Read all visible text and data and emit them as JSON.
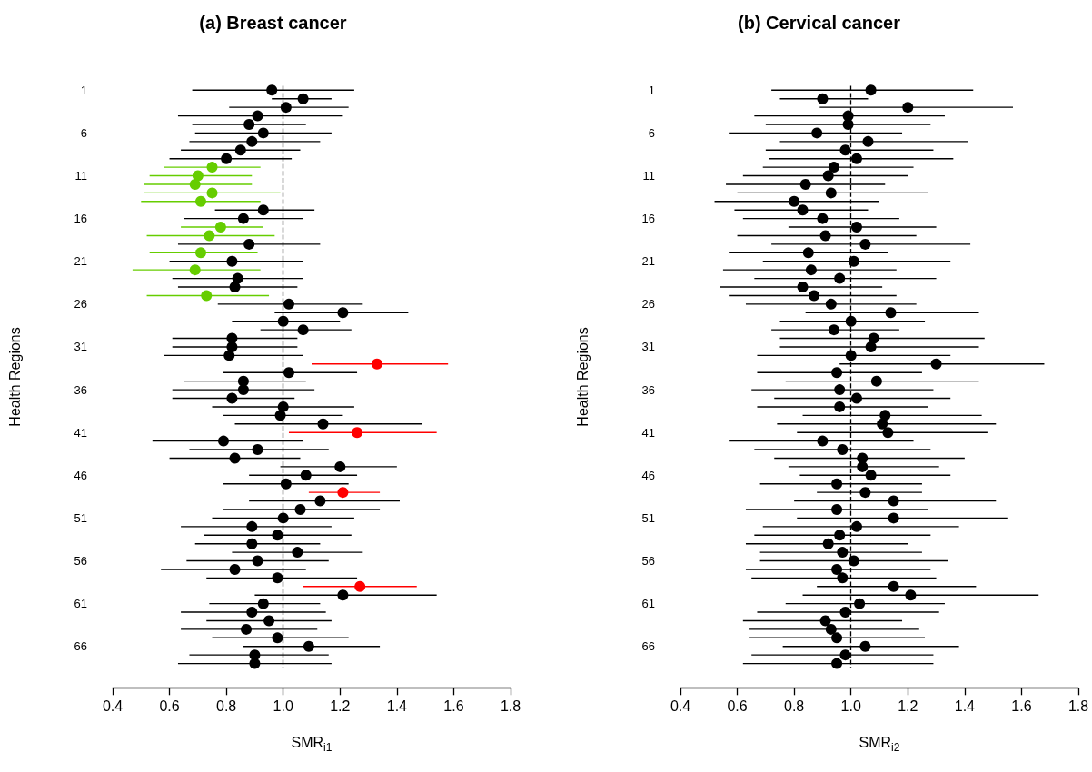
{
  "chart_data": [
    {
      "type": "scatter",
      "orientation": "horizontal",
      "title": "(a) Breast cancer",
      "xlabel": "SMR$_{i1}$",
      "ylabel": "Health Regions",
      "categories": [
        "1",
        null,
        null,
        null,
        null,
        "6",
        null,
        null,
        null,
        null,
        "11",
        null,
        null,
        null,
        null,
        "16",
        null,
        null,
        null,
        null,
        "21",
        null,
        null,
        null,
        null,
        "26",
        null,
        null,
        null,
        null,
        "31",
        null,
        null,
        null,
        null,
        "36",
        null,
        null,
        null,
        null,
        "41",
        null,
        null,
        null,
        null,
        "46",
        null,
        null,
        null,
        null,
        "51",
        null,
        null,
        null,
        null,
        "56",
        null,
        null,
        null,
        null,
        "61",
        null,
        null,
        null,
        null,
        "66",
        null,
        null
      ],
      "values": [
        0.96,
        1.07,
        1.01,
        0.91,
        0.88,
        0.93,
        0.89,
        0.85,
        0.8,
        0.75,
        0.7,
        0.69,
        0.75,
        0.71,
        0.93,
        0.86,
        0.78,
        0.74,
        0.88,
        0.71,
        0.82,
        0.69,
        0.84,
        0.83,
        0.73,
        1.02,
        1.21,
        1.0,
        1.07,
        0.82,
        0.82,
        0.81,
        1.33,
        1.02,
        0.86,
        0.86,
        0.82,
        1.0,
        0.99,
        1.14,
        1.26,
        0.79,
        0.91,
        0.83,
        1.2,
        1.08,
        1.01,
        1.21,
        1.13,
        1.06,
        1.0,
        0.89,
        0.98,
        0.89,
        1.05,
        0.91,
        0.83,
        0.98,
        1.27,
        1.21,
        0.93,
        0.89,
        0.95,
        0.87,
        0.98,
        1.09,
        0.9,
        0.9
      ],
      "errors": [
        [
          0.68,
          1.25
        ],
        [
          0.96,
          1.17
        ],
        [
          0.81,
          1.23
        ],
        [
          0.63,
          1.21
        ],
        [
          0.68,
          1.08
        ],
        [
          0.69,
          1.17
        ],
        [
          0.67,
          1.13
        ],
        [
          0.64,
          1.06
        ],
        [
          0.6,
          1.03
        ],
        [
          0.58,
          0.92
        ],
        [
          0.53,
          0.89
        ],
        [
          0.51,
          0.89
        ],
        [
          0.51,
          0.99
        ],
        [
          0.5,
          0.92
        ],
        [
          0.76,
          1.11
        ],
        [
          0.65,
          1.07
        ],
        [
          0.64,
          0.93
        ],
        [
          0.52,
          0.97
        ],
        [
          0.63,
          1.13
        ],
        [
          0.53,
          0.91
        ],
        [
          0.6,
          1.07
        ],
        [
          0.47,
          0.92
        ],
        [
          0.61,
          1.07
        ],
        [
          0.63,
          1.05
        ],
        [
          0.52,
          0.95
        ],
        [
          0.77,
          1.28
        ],
        [
          0.97,
          1.44
        ],
        [
          0.82,
          1.2
        ],
        [
          0.92,
          1.24
        ],
        [
          0.61,
          1.05
        ],
        [
          0.61,
          1.05
        ],
        [
          0.58,
          1.07
        ],
        [
          1.1,
          1.58
        ],
        [
          0.79,
          1.26
        ],
        [
          0.65,
          1.08
        ],
        [
          0.61,
          1.11
        ],
        [
          0.61,
          1.04
        ],
        [
          0.75,
          1.25
        ],
        [
          0.79,
          1.21
        ],
        [
          0.83,
          1.49
        ],
        [
          1.02,
          1.54
        ],
        [
          0.54,
          1.07
        ],
        [
          0.67,
          1.16
        ],
        [
          0.6,
          1.06
        ],
        [
          0.99,
          1.4
        ],
        [
          0.88,
          1.26
        ],
        [
          0.79,
          1.23
        ],
        [
          1.09,
          1.34
        ],
        [
          0.88,
          1.41
        ],
        [
          0.79,
          1.34
        ],
        [
          0.75,
          1.25
        ],
        [
          0.64,
          1.17
        ],
        [
          0.72,
          1.24
        ],
        [
          0.69,
          1.13
        ],
        [
          0.82,
          1.28
        ],
        [
          0.66,
          1.16
        ],
        [
          0.57,
          1.08
        ],
        [
          0.73,
          1.26
        ],
        [
          1.07,
          1.47
        ],
        [
          0.9,
          1.54
        ],
        [
          0.74,
          1.13
        ],
        [
          0.64,
          1.15
        ],
        [
          0.73,
          1.17
        ],
        [
          0.64,
          1.12
        ],
        [
          0.75,
          1.23
        ],
        [
          0.86,
          1.34
        ],
        [
          0.67,
          1.16
        ],
        [
          0.63,
          1.17
        ]
      ],
      "colors": [
        "#000000",
        "#000000",
        "#000000",
        "#000000",
        "#000000",
        "#000000",
        "#000000",
        "#000000",
        "#000000",
        "#66cd00",
        "#66cd00",
        "#66cd00",
        "#66cd00",
        "#66cd00",
        "#000000",
        "#000000",
        "#66cd00",
        "#66cd00",
        "#000000",
        "#66cd00",
        "#000000",
        "#66cd00",
        "#000000",
        "#000000",
        "#66cd00",
        "#000000",
        "#000000",
        "#000000",
        "#000000",
        "#000000",
        "#000000",
        "#000000",
        "#ff0000",
        "#000000",
        "#000000",
        "#000000",
        "#000000",
        "#000000",
        "#000000",
        "#000000",
        "#ff0000",
        "#000000",
        "#000000",
        "#000000",
        "#000000",
        "#000000",
        "#000000",
        "#ff0000",
        "#000000",
        "#000000",
        "#000000",
        "#000000",
        "#000000",
        "#000000",
        "#000000",
        "#000000",
        "#000000",
        "#000000",
        "#ff0000",
        "#000000",
        "#000000",
        "#000000",
        "#000000",
        "#000000",
        "#000000",
        "#000000",
        "#000000",
        "#000000"
      ],
      "xlim": [
        0.4,
        1.8
      ],
      "xticks": [
        0.4,
        0.6,
        0.8,
        {
          "value": 1,
          "label": "1.0"
        },
        1.2,
        1.4,
        1.6,
        1.8
      ],
      "ref_lines": [
        {
          "axis": "x",
          "value": 1,
          "color": "#000000",
          "line_style": "dashed"
        }
      ],
      "marker": "circle",
      "grid": false
    },
    {
      "type": "scatter",
      "orientation": "horizontal",
      "title": "(b) Cervical cancer",
      "xlabel": "SMR$_{i2}$",
      "ylabel": "Health Regions",
      "categories": [
        "1",
        null,
        null,
        null,
        null,
        "6",
        null,
        null,
        null,
        null,
        "11",
        null,
        null,
        null,
        null,
        "16",
        null,
        null,
        null,
        null,
        "21",
        null,
        null,
        null,
        null,
        "26",
        null,
        null,
        null,
        null,
        "31",
        null,
        null,
        null,
        null,
        "36",
        null,
        null,
        null,
        null,
        "41",
        null,
        null,
        null,
        null,
        "46",
        null,
        null,
        null,
        null,
        "51",
        null,
        null,
        null,
        null,
        "56",
        null,
        null,
        null,
        null,
        "61",
        null,
        null,
        null,
        null,
        "66",
        null,
        null
      ],
      "values": [
        1.07,
        0.9,
        1.2,
        0.99,
        0.99,
        0.88,
        1.06,
        0.98,
        1.02,
        0.94,
        0.92,
        0.84,
        0.93,
        0.8,
        0.83,
        0.9,
        1.02,
        0.91,
        1.05,
        0.85,
        1.01,
        0.86,
        0.96,
        0.83,
        0.87,
        0.93,
        1.14,
        1.0,
        0.94,
        1.08,
        1.07,
        1.0,
        1.3,
        0.95,
        1.09,
        0.96,
        1.02,
        0.96,
        1.12,
        1.11,
        1.13,
        0.9,
        0.97,
        1.04,
        1.04,
        1.07,
        0.95,
        1.05,
        1.15,
        0.95,
        1.15,
        1.02,
        0.96,
        0.92,
        0.97,
        1.01,
        0.95,
        0.97,
        1.15,
        1.21,
        1.03,
        0.98,
        0.91,
        0.93,
        0.95,
        1.05,
        0.98,
        0.95
      ],
      "errors": [
        [
          0.72,
          1.43
        ],
        [
          0.75,
          1.06
        ],
        [
          0.89,
          1.57
        ],
        [
          0.66,
          1.33
        ],
        [
          0.7,
          1.28
        ],
        [
          0.57,
          1.18
        ],
        [
          0.75,
          1.41
        ],
        [
          0.7,
          1.29
        ],
        [
          0.71,
          1.36
        ],
        [
          0.69,
          1.22
        ],
        [
          0.62,
          1.2
        ],
        [
          0.56,
          1.12
        ],
        [
          0.6,
          1.27
        ],
        [
          0.52,
          1.1
        ],
        [
          0.59,
          1.06
        ],
        [
          0.62,
          1.17
        ],
        [
          0.78,
          1.3
        ],
        [
          0.6,
          1.23
        ],
        [
          0.72,
          1.42
        ],
        [
          0.57,
          1.13
        ],
        [
          0.69,
          1.35
        ],
        [
          0.55,
          1.16
        ],
        [
          0.66,
          1.3
        ],
        [
          0.54,
          1.11
        ],
        [
          0.57,
          1.16
        ],
        [
          0.63,
          1.23
        ],
        [
          0.84,
          1.45
        ],
        [
          0.75,
          1.26
        ],
        [
          0.72,
          1.17
        ],
        [
          0.75,
          1.47
        ],
        [
          0.75,
          1.45
        ],
        [
          0.67,
          1.35
        ],
        [
          0.96,
          1.68
        ],
        [
          0.67,
          1.25
        ],
        [
          0.77,
          1.45
        ],
        [
          0.65,
          1.29
        ],
        [
          0.73,
          1.35
        ],
        [
          0.67,
          1.27
        ],
        [
          0.83,
          1.46
        ],
        [
          0.74,
          1.51
        ],
        [
          0.81,
          1.48
        ],
        [
          0.57,
          1.22
        ],
        [
          0.66,
          1.28
        ],
        [
          0.73,
          1.4
        ],
        [
          0.78,
          1.31
        ],
        [
          0.82,
          1.35
        ],
        [
          0.68,
          1.25
        ],
        [
          0.88,
          1.25
        ],
        [
          0.8,
          1.51
        ],
        [
          0.63,
          1.27
        ],
        [
          0.81,
          1.55
        ],
        [
          0.69,
          1.38
        ],
        [
          0.66,
          1.28
        ],
        [
          0.63,
          1.2
        ],
        [
          0.68,
          1.25
        ],
        [
          0.68,
          1.34
        ],
        [
          0.63,
          1.28
        ],
        [
          0.65,
          1.3
        ],
        [
          0.88,
          1.44
        ],
        [
          0.83,
          1.66
        ],
        [
          0.77,
          1.33
        ],
        [
          0.67,
          1.31
        ],
        [
          0.62,
          1.18
        ],
        [
          0.64,
          1.24
        ],
        [
          0.64,
          1.26
        ],
        [
          0.76,
          1.38
        ],
        [
          0.65,
          1.29
        ],
        [
          0.62,
          1.29
        ]
      ],
      "color": "#000000",
      "xlim": [
        0.4,
        1.8
      ],
      "xticks": [
        0.4,
        0.6,
        0.8,
        {
          "value": 1,
          "label": "1.0"
        },
        1.2,
        1.4,
        1.6,
        1.8
      ],
      "ref_lines": [
        {
          "axis": "x",
          "value": 1,
          "color": "#000000",
          "line_style": "dashed"
        }
      ],
      "marker": "circle",
      "grid": false
    }
  ]
}
